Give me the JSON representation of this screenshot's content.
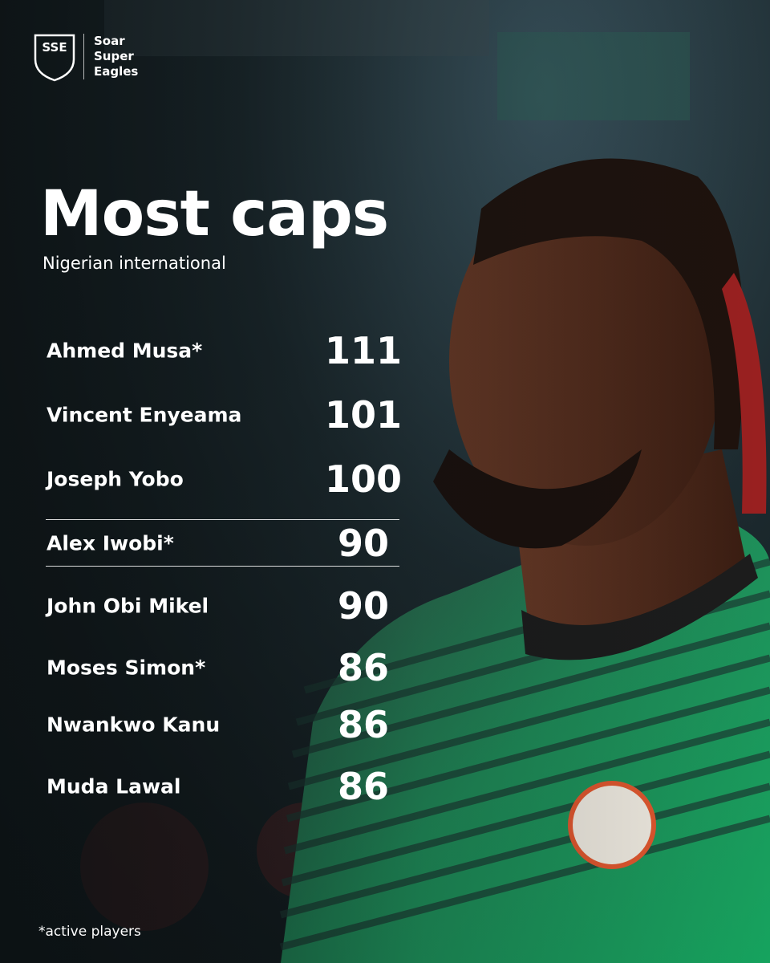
{
  "logo": {
    "mark": "SSE",
    "lines": [
      "Soar",
      "Super",
      "Eagles"
    ]
  },
  "title": "Most caps",
  "subtitle": "Nigerian international",
  "rows": [
    {
      "name": "Ahmed Musa*",
      "caps": 111
    },
    {
      "name": "Vincent Enyeama",
      "caps": 101
    },
    {
      "name": "Joseph Yobo",
      "caps": 100
    },
    {
      "name": "Alex Iwobi*",
      "caps": 90
    },
    {
      "name": "John Obi Mikel",
      "caps": 90
    },
    {
      "name": "Moses Simon*",
      "caps": 86
    },
    {
      "name": "Nwankwo Kanu",
      "caps": 86
    },
    {
      "name": "Muda Lawal",
      "caps": 86
    }
  ],
  "footnote": "*active players"
}
